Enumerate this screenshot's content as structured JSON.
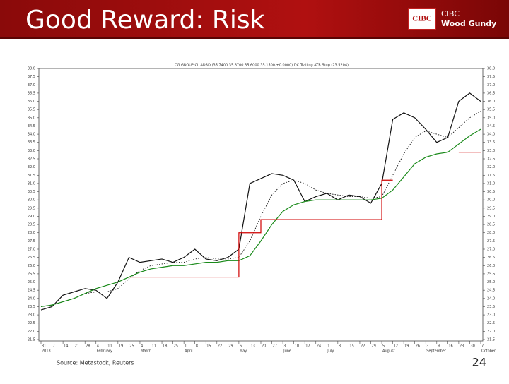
{
  "slide": {
    "title": "Good Reward: Risk",
    "logo_mark": "CIBC",
    "logo_text_1": "CIBC",
    "logo_text_2": "Wood Gundy",
    "source": "Source: Metastock, Reuters",
    "page_number": "24"
  },
  "chart_data": {
    "type": "line",
    "title": "CG GROUP CL ADRD (35.7400 35.8700 35.6000 35.1500,+0.0000) DC Trailing ATR Stop (23.5204)",
    "categories": [
      "31",
      "7",
      "14",
      "21",
      "28",
      "4",
      "11",
      "19",
      "25",
      "4",
      "11",
      "18",
      "25",
      "1",
      "8",
      "15",
      "22",
      "29",
      "6",
      "13",
      "20",
      "27",
      "3",
      "10",
      "17",
      "24",
      "1",
      "8",
      "15",
      "22",
      "29",
      "5",
      "12",
      "19",
      "26",
      "3",
      "9",
      "16",
      "23",
      "30",
      "7"
    ],
    "month_labels": [
      "2013",
      null,
      null,
      null,
      null,
      "February",
      null,
      null,
      null,
      "March",
      null,
      null,
      null,
      "April",
      null,
      null,
      null,
      null,
      "May",
      null,
      null,
      null,
      "June",
      null,
      null,
      null,
      "July",
      null,
      null,
      null,
      null,
      "August",
      null,
      null,
      null,
      "September",
      null,
      null,
      null,
      null,
      "October"
    ],
    "series": [
      {
        "color": "#111111",
        "style": "solid",
        "values": [
          23.3,
          23.5,
          24.2,
          24.4,
          24.6,
          24.5,
          24.0,
          25.0,
          26.5,
          26.2,
          26.3,
          26.4,
          26.2,
          26.5,
          27.0,
          26.4,
          26.3,
          26.5,
          27.0,
          31.0,
          31.3,
          31.6,
          31.5,
          31.2,
          29.9,
          30.2,
          30.4,
          30.0,
          30.3,
          30.2,
          29.8,
          31.0,
          34.9,
          35.3,
          35.0,
          34.3,
          33.5,
          33.8,
          36.0,
          36.5,
          36.0
        ]
      },
      {
        "color": "#111111",
        "style": "dotted",
        "values": [
          23.5,
          23.6,
          23.8,
          24.0,
          24.3,
          24.4,
          24.4,
          24.6,
          25.2,
          25.7,
          26.0,
          26.1,
          26.2,
          26.2,
          26.4,
          26.5,
          26.4,
          26.4,
          26.5,
          27.5,
          29.0,
          30.3,
          31.0,
          31.2,
          31.0,
          30.6,
          30.4,
          30.3,
          30.2,
          30.2,
          30.1,
          30.2,
          31.5,
          32.8,
          33.8,
          34.2,
          34.0,
          33.8,
          34.4,
          35.0,
          35.4
        ]
      },
      {
        "color": "#1a8a1a",
        "style": "solid",
        "values": [
          23.5,
          23.6,
          23.8,
          24.0,
          24.3,
          24.6,
          24.8,
          25.0,
          25.3,
          25.6,
          25.8,
          25.9,
          26.0,
          26.0,
          26.1,
          26.2,
          26.2,
          26.3,
          26.3,
          26.6,
          27.5,
          28.5,
          29.3,
          29.7,
          29.9,
          30.0,
          30.0,
          30.0,
          30.0,
          30.0,
          30.0,
          30.1,
          30.6,
          31.4,
          32.2,
          32.6,
          32.8,
          32.9,
          33.4,
          33.9,
          34.3
        ]
      },
      {
        "color": "#d00000",
        "style": "step",
        "values": [
          null,
          null,
          null,
          null,
          null,
          null,
          null,
          null,
          25.3,
          25.3,
          25.3,
          25.3,
          25.3,
          25.3,
          25.3,
          25.3,
          25.3,
          25.3,
          28.0,
          28.0,
          28.8,
          28.8,
          28.8,
          28.8,
          28.8,
          28.8,
          28.8,
          28.8,
          28.8,
          28.8,
          28.8,
          31.2,
          31.2,
          null,
          null,
          null,
          null,
          null,
          32.9,
          32.9,
          32.9
        ]
      }
    ],
    "ylim": [
      21.5,
      38.0
    ],
    "yticks": [
      21.5,
      {
        "value": 22,
        "label": "22.0"
      },
      22.5,
      {
        "value": 23,
        "label": "23.0"
      },
      23.5,
      {
        "value": 24,
        "label": "24.0"
      },
      24.5,
      {
        "value": 25,
        "label": "25.0"
      },
      25.5,
      {
        "value": 26,
        "label": "26.0"
      },
      26.5,
      {
        "value": 27,
        "label": "27.0"
      },
      27.5,
      {
        "value": 28,
        "label": "28.0"
      },
      28.5,
      {
        "value": 29,
        "label": "29.0"
      },
      29.5,
      {
        "value": 30,
        "label": "30.0"
      },
      30.5,
      {
        "value": 31,
        "label": "31.0"
      },
      31.5,
      {
        "value": 32,
        "label": "32.0"
      },
      32.5,
      {
        "value": 33,
        "label": "33.0"
      },
      33.5,
      {
        "value": 34,
        "label": "34.0"
      },
      34.5,
      {
        "value": 35,
        "label": "35.0"
      },
      35.5,
      {
        "value": 36,
        "label": "36.0"
      },
      36.5,
      {
        "value": 37,
        "label": "37.0"
      },
      37.5,
      {
        "value": 38,
        "label": "38.0"
      }
    ],
    "grid": false
  }
}
